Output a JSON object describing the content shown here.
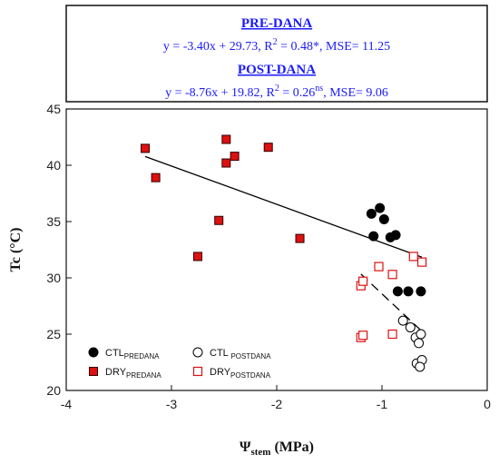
{
  "chart_data": {
    "type": "scatter",
    "xlabel_main": "Ψ",
    "xlabel_sub": "stem",
    "xlabel_unit": " (MPa)",
    "ylabel": "Tc (°C)",
    "xlim": [
      -4,
      0
    ],
    "ylim": [
      20,
      45
    ],
    "xticks": [
      -4,
      -3,
      -2,
      -1,
      0
    ],
    "yticks": [
      20,
      25,
      30,
      35,
      40,
      45
    ],
    "legend_position": "bottom-left",
    "equations": {
      "pre_title": "PRE-DANA",
      "pre_parts": [
        "y = -3.40x + 29.73, R",
        "2",
        " = 0.48*, MSE= 11.25"
      ],
      "post_title": "POST-DANA",
      "post_parts": [
        "y = -8.76x + 19.82, R",
        "2",
        " = 0.26",
        "ns",
        ", MSE= 9.06"
      ]
    },
    "colors": {
      "red": "#dd1111",
      "black": "#000000",
      "equation": "#1a1aff"
    },
    "series": [
      {
        "name_main": "CTL",
        "name_sub": "PREDANA",
        "marker": "circle-filled",
        "points": [
          [
            -1.1,
            35.7
          ],
          [
            -1.02,
            36.2
          ],
          [
            -0.98,
            35.2
          ],
          [
            -1.08,
            33.7
          ],
          [
            -0.92,
            33.6
          ],
          [
            -0.87,
            33.8
          ],
          [
            -0.85,
            28.8
          ],
          [
            -0.75,
            28.8
          ],
          [
            -0.63,
            28.8
          ]
        ]
      },
      {
        "name_main": "DRY",
        "name_sub": "PREDANA",
        "marker": "square-filled",
        "points": [
          [
            -3.25,
            41.5
          ],
          [
            -3.15,
            38.9
          ],
          [
            -2.75,
            31.9
          ],
          [
            -2.55,
            35.1
          ],
          [
            -2.48,
            42.3
          ],
          [
            -2.48,
            40.2
          ],
          [
            -2.4,
            40.8
          ],
          [
            -2.08,
            41.6
          ],
          [
            -1.78,
            33.5
          ]
        ]
      },
      {
        "name_main": "CTL ",
        "name_sub": "POSTDANA",
        "marker": "circle-open",
        "points": [
          [
            -0.8,
            26.2
          ],
          [
            -0.73,
            25.6
          ],
          [
            -0.68,
            24.7
          ],
          [
            -0.63,
            25
          ],
          [
            -0.65,
            24.2
          ],
          [
            -0.67,
            22.4
          ],
          [
            -0.62,
            22.7
          ],
          [
            -0.64,
            22.1
          ]
        ]
      },
      {
        "name_main": "DRY",
        "name_sub": "POSTDANA",
        "marker": "square-open",
        "points": [
          [
            -1.2,
            29.3
          ],
          [
            -1.18,
            29.7
          ],
          [
            -1.03,
            31
          ],
          [
            -0.9,
            30.3
          ],
          [
            -0.7,
            31.9
          ],
          [
            -0.62,
            31.4
          ],
          [
            -1.2,
            24.7
          ],
          [
            -1.18,
            24.9
          ],
          [
            -0.9,
            25
          ]
        ]
      }
    ],
    "fits": [
      {
        "style": "solid",
        "slope": -3.4,
        "intercept": 29.73,
        "x_range": [
          -3.25,
          -0.62
        ]
      },
      {
        "style": "dashed",
        "slope": -8.76,
        "intercept": 19.82,
        "x_range": [
          -1.2,
          -0.62
        ]
      }
    ]
  }
}
